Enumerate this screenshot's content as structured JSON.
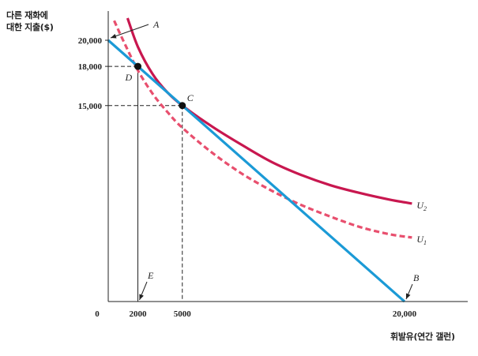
{
  "chart_data": {
    "type": "line",
    "ylabel_line1": "다른 재화에",
    "ylabel_line2": "대한 지출($)",
    "xlabel": "휘발유(연간 갤런)",
    "origin_label": "0",
    "x_ticks": [
      {
        "value": 2000,
        "label": "2000"
      },
      {
        "value": 5000,
        "label": "5000"
      },
      {
        "value": 20000,
        "label": "20,000"
      }
    ],
    "y_ticks": [
      {
        "value": 20000,
        "label": "20,000"
      },
      {
        "value": 18000,
        "label": "18,000"
      },
      {
        "value": 15000,
        "label": "15,000"
      }
    ],
    "xlim": [
      0,
      21500
    ],
    "ylim": [
      0,
      21700
    ],
    "colors": {
      "budget": "#1b9ad6",
      "u2": "#c8174f",
      "u1": "#e84f6e",
      "axis": "#222222"
    },
    "budget_line": {
      "points": [
        [
          0,
          20000
        ],
        [
          20000,
          0
        ]
      ]
    },
    "curves": [
      {
        "name": "U2",
        "subscript": "2",
        "style": "solid",
        "points": [
          [
            1300,
            21700
          ],
          [
            2000,
            19500
          ],
          [
            3000,
            17400
          ],
          [
            4000,
            16000
          ],
          [
            5000,
            15000
          ],
          [
            7000,
            13400
          ],
          [
            9000,
            12000
          ],
          [
            11000,
            10700
          ],
          [
            13000,
            9700
          ],
          [
            15000,
            8900
          ],
          [
            17000,
            8300
          ],
          [
            19000,
            7800
          ],
          [
            20500,
            7500
          ]
        ]
      },
      {
        "name": "U1",
        "subscript": "1",
        "style": "dashed",
        "points": [
          [
            400,
            21500
          ],
          [
            1000,
            20000
          ],
          [
            2000,
            17700
          ],
          [
            3000,
            15900
          ],
          [
            4000,
            14500
          ],
          [
            5000,
            13300
          ],
          [
            7000,
            11400
          ],
          [
            9000,
            9800
          ],
          [
            11000,
            8500
          ],
          [
            13000,
            7400
          ],
          [
            15000,
            6500
          ],
          [
            17000,
            5700
          ],
          [
            19000,
            5150
          ],
          [
            20500,
            4900
          ]
        ]
      }
    ],
    "points": [
      {
        "label": "D",
        "x": 2000,
        "y": 18000,
        "marker": true
      },
      {
        "label": "C",
        "x": 5000,
        "y": 15000,
        "marker": true
      }
    ],
    "annotations": [
      {
        "label": "A",
        "x": 0,
        "y": 20000
      },
      {
        "label": "B",
        "x": 20000,
        "y": 0
      },
      {
        "label": "E",
        "x": 2000,
        "y": 0
      }
    ]
  }
}
